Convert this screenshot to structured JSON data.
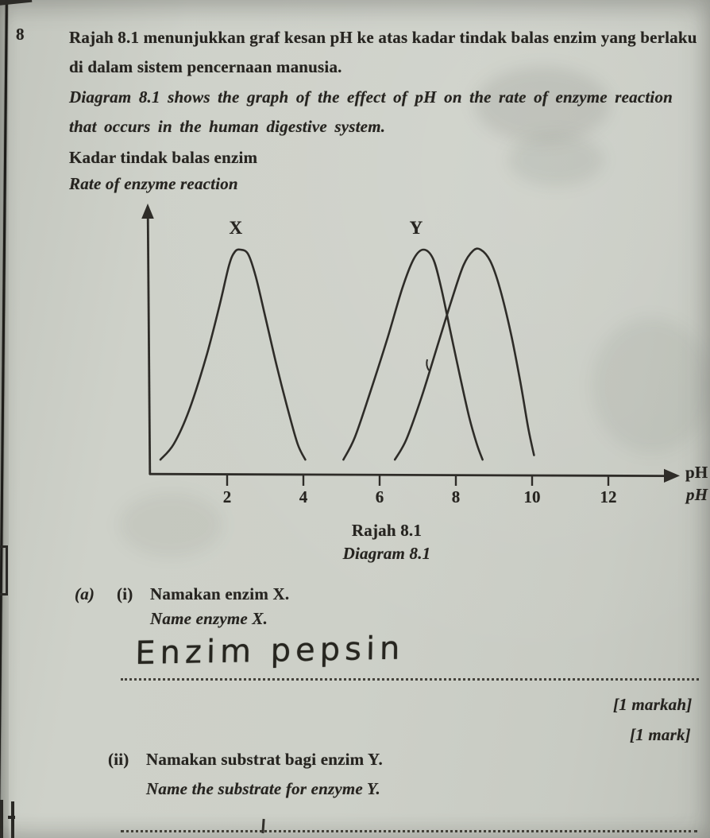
{
  "document": {
    "question_number": "8",
    "intro": {
      "malay_line1": "Rajah 8.1 menunjukkan graf kesan pH ke atas kadar tindak balas enzim yang berlaku",
      "malay_line2": "di dalam sistem pencernaan manusia.",
      "english_line1": "Diagram 8.1 shows the graph of the effect of pH on the rate of enzyme reaction",
      "english_line2": "that occurs in the human digestive system."
    },
    "caption": {
      "malay": "Rajah 8.1",
      "english": "Diagram 8.1"
    },
    "question_a": {
      "part_label": "(a)",
      "i": {
        "label": "(i)",
        "malay": "Namakan enzim X.",
        "english": "Name enzyme X.",
        "handwritten_answer": "Enzim pepsin",
        "marks_malay": "[1 markah]",
        "marks_english": "[1 mark]"
      },
      "ii": {
        "label": "(ii)",
        "malay": "Namakan substrat bagi enzim Y.",
        "english": "Name the substrate for enzyme Y."
      }
    }
  },
  "chart_data": {
    "type": "line",
    "title_malay": "Rajah 8.1",
    "title_english": "Diagram 8.1",
    "ylabel_malay": "Kadar tindak balas enzim",
    "ylabel_english": "Rate of enzyme reaction",
    "xlabel_malay": "pH",
    "xlabel_english": "pH",
    "x_ticks": [
      2,
      4,
      6,
      8,
      10,
      12
    ],
    "xlim": [
      0,
      13.5
    ],
    "ylim": [
      0,
      1.15
    ],
    "grid": false,
    "legend": "none",
    "series": [
      {
        "name": "X",
        "label": "X",
        "label_at": [
          2.22,
          1.1
        ],
        "optimum_pH": 2.3,
        "points": [
          [
            0.25,
            0.06
          ],
          [
            0.6,
            0.13
          ],
          [
            1.0,
            0.28
          ],
          [
            1.45,
            0.52
          ],
          [
            1.8,
            0.75
          ],
          [
            2.05,
            0.93
          ],
          [
            2.2,
            0.99
          ],
          [
            2.35,
            1.0
          ],
          [
            2.55,
            0.98
          ],
          [
            2.75,
            0.88
          ],
          [
            3.0,
            0.7
          ],
          [
            3.3,
            0.48
          ],
          [
            3.6,
            0.28
          ],
          [
            3.85,
            0.13
          ],
          [
            4.05,
            0.06
          ]
        ]
      },
      {
        "name": "Y",
        "label": "Y",
        "label_at": [
          6.95,
          1.1
        ],
        "optimum_pH": 7.2,
        "points": [
          [
            5.05,
            0.06
          ],
          [
            5.35,
            0.16
          ],
          [
            5.75,
            0.36
          ],
          [
            6.2,
            0.6
          ],
          [
            6.6,
            0.83
          ],
          [
            6.9,
            0.96
          ],
          [
            7.15,
            1.0
          ],
          [
            7.4,
            0.96
          ],
          [
            7.6,
            0.84
          ],
          [
            7.85,
            0.64
          ],
          [
            8.1,
            0.44
          ],
          [
            8.35,
            0.25
          ],
          [
            8.55,
            0.13
          ],
          [
            8.7,
            0.06
          ]
        ]
      },
      {
        "name": "unlabelled",
        "label": "",
        "label_at": null,
        "optimum_pH": 8.65,
        "points": [
          [
            6.4,
            0.06
          ],
          [
            6.7,
            0.15
          ],
          [
            7.1,
            0.34
          ],
          [
            7.5,
            0.56
          ],
          [
            7.9,
            0.78
          ],
          [
            8.2,
            0.93
          ],
          [
            8.45,
            0.995
          ],
          [
            8.65,
            1.0
          ],
          [
            8.9,
            0.95
          ],
          [
            9.15,
            0.83
          ],
          [
            9.45,
            0.62
          ],
          [
            9.7,
            0.4
          ],
          [
            9.9,
            0.2
          ],
          [
            10.05,
            0.08
          ]
        ]
      }
    ]
  }
}
